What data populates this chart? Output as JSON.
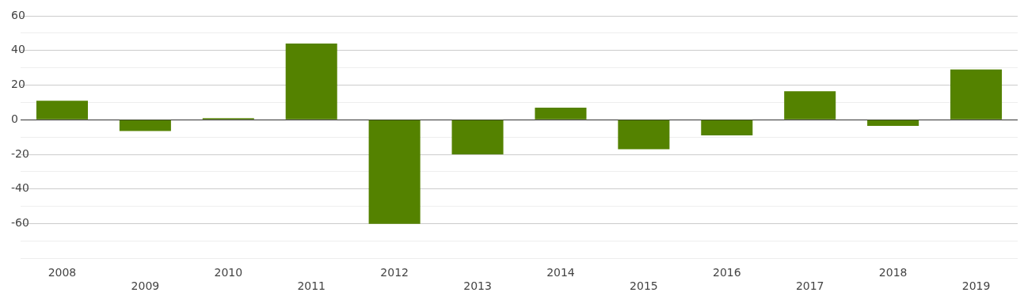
{
  "chart_data": {
    "type": "bar",
    "categories": [
      "2008",
      "2009",
      "2010",
      "2011",
      "2012",
      "2013",
      "2014",
      "2015",
      "2016",
      "2017",
      "2018",
      "2019"
    ],
    "values": [
      11,
      -6.5,
      1,
      44,
      -60,
      -20,
      7,
      -17,
      -9,
      16.5,
      -3.5,
      29
    ],
    "color": "#548200",
    "ylim": [
      -80,
      60
    ],
    "yticks": [
      {
        "value": -80,
        "label": null
      },
      {
        "value": -70,
        "label": null
      },
      -60,
      {
        "value": -50,
        "label": null
      },
      -40,
      {
        "value": -30,
        "label": null
      },
      -20,
      {
        "value": -10,
        "label": null
      },
      0,
      {
        "value": 10,
        "label": null
      },
      20,
      {
        "value": 30,
        "label": null
      },
      40,
      {
        "value": 50,
        "label": null
      },
      60
    ],
    "grid": "y",
    "legend": false
  }
}
